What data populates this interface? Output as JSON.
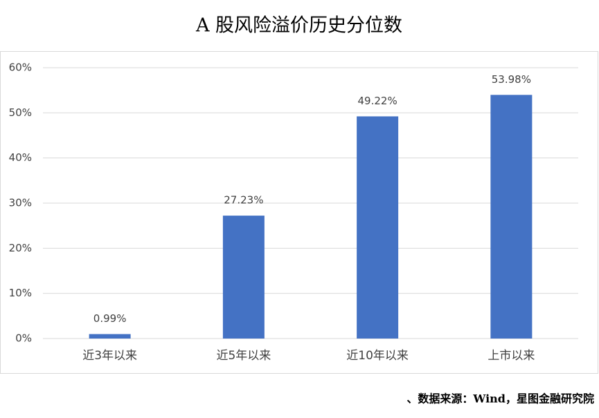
{
  "chart_data": {
    "type": "bar",
    "title": "A 股风险溢价历史分位数",
    "categories": [
      "近3年以来",
      "近5年以来",
      "近10年以来",
      "上市以来"
    ],
    "values": [
      0.99,
      27.23,
      49.22,
      53.98
    ],
    "value_labels": [
      "0.99%",
      "27.23%",
      "49.22%",
      "53.98%"
    ],
    "color": "#4472c4",
    "ylim": [
      0,
      60
    ],
    "yticks": [
      {
        "value": 0,
        "label": "0%"
      },
      {
        "value": 10,
        "label": "10%"
      },
      {
        "value": 20,
        "label": "20%"
      },
      {
        "value": 30,
        "label": "30%"
      },
      {
        "value": 40,
        "label": "40%"
      },
      {
        "value": 50,
        "label": "50%"
      },
      {
        "value": 60,
        "label": "60%"
      }
    ],
    "grid": true,
    "source": "、数据来源：Wind，星图金融研究院"
  }
}
